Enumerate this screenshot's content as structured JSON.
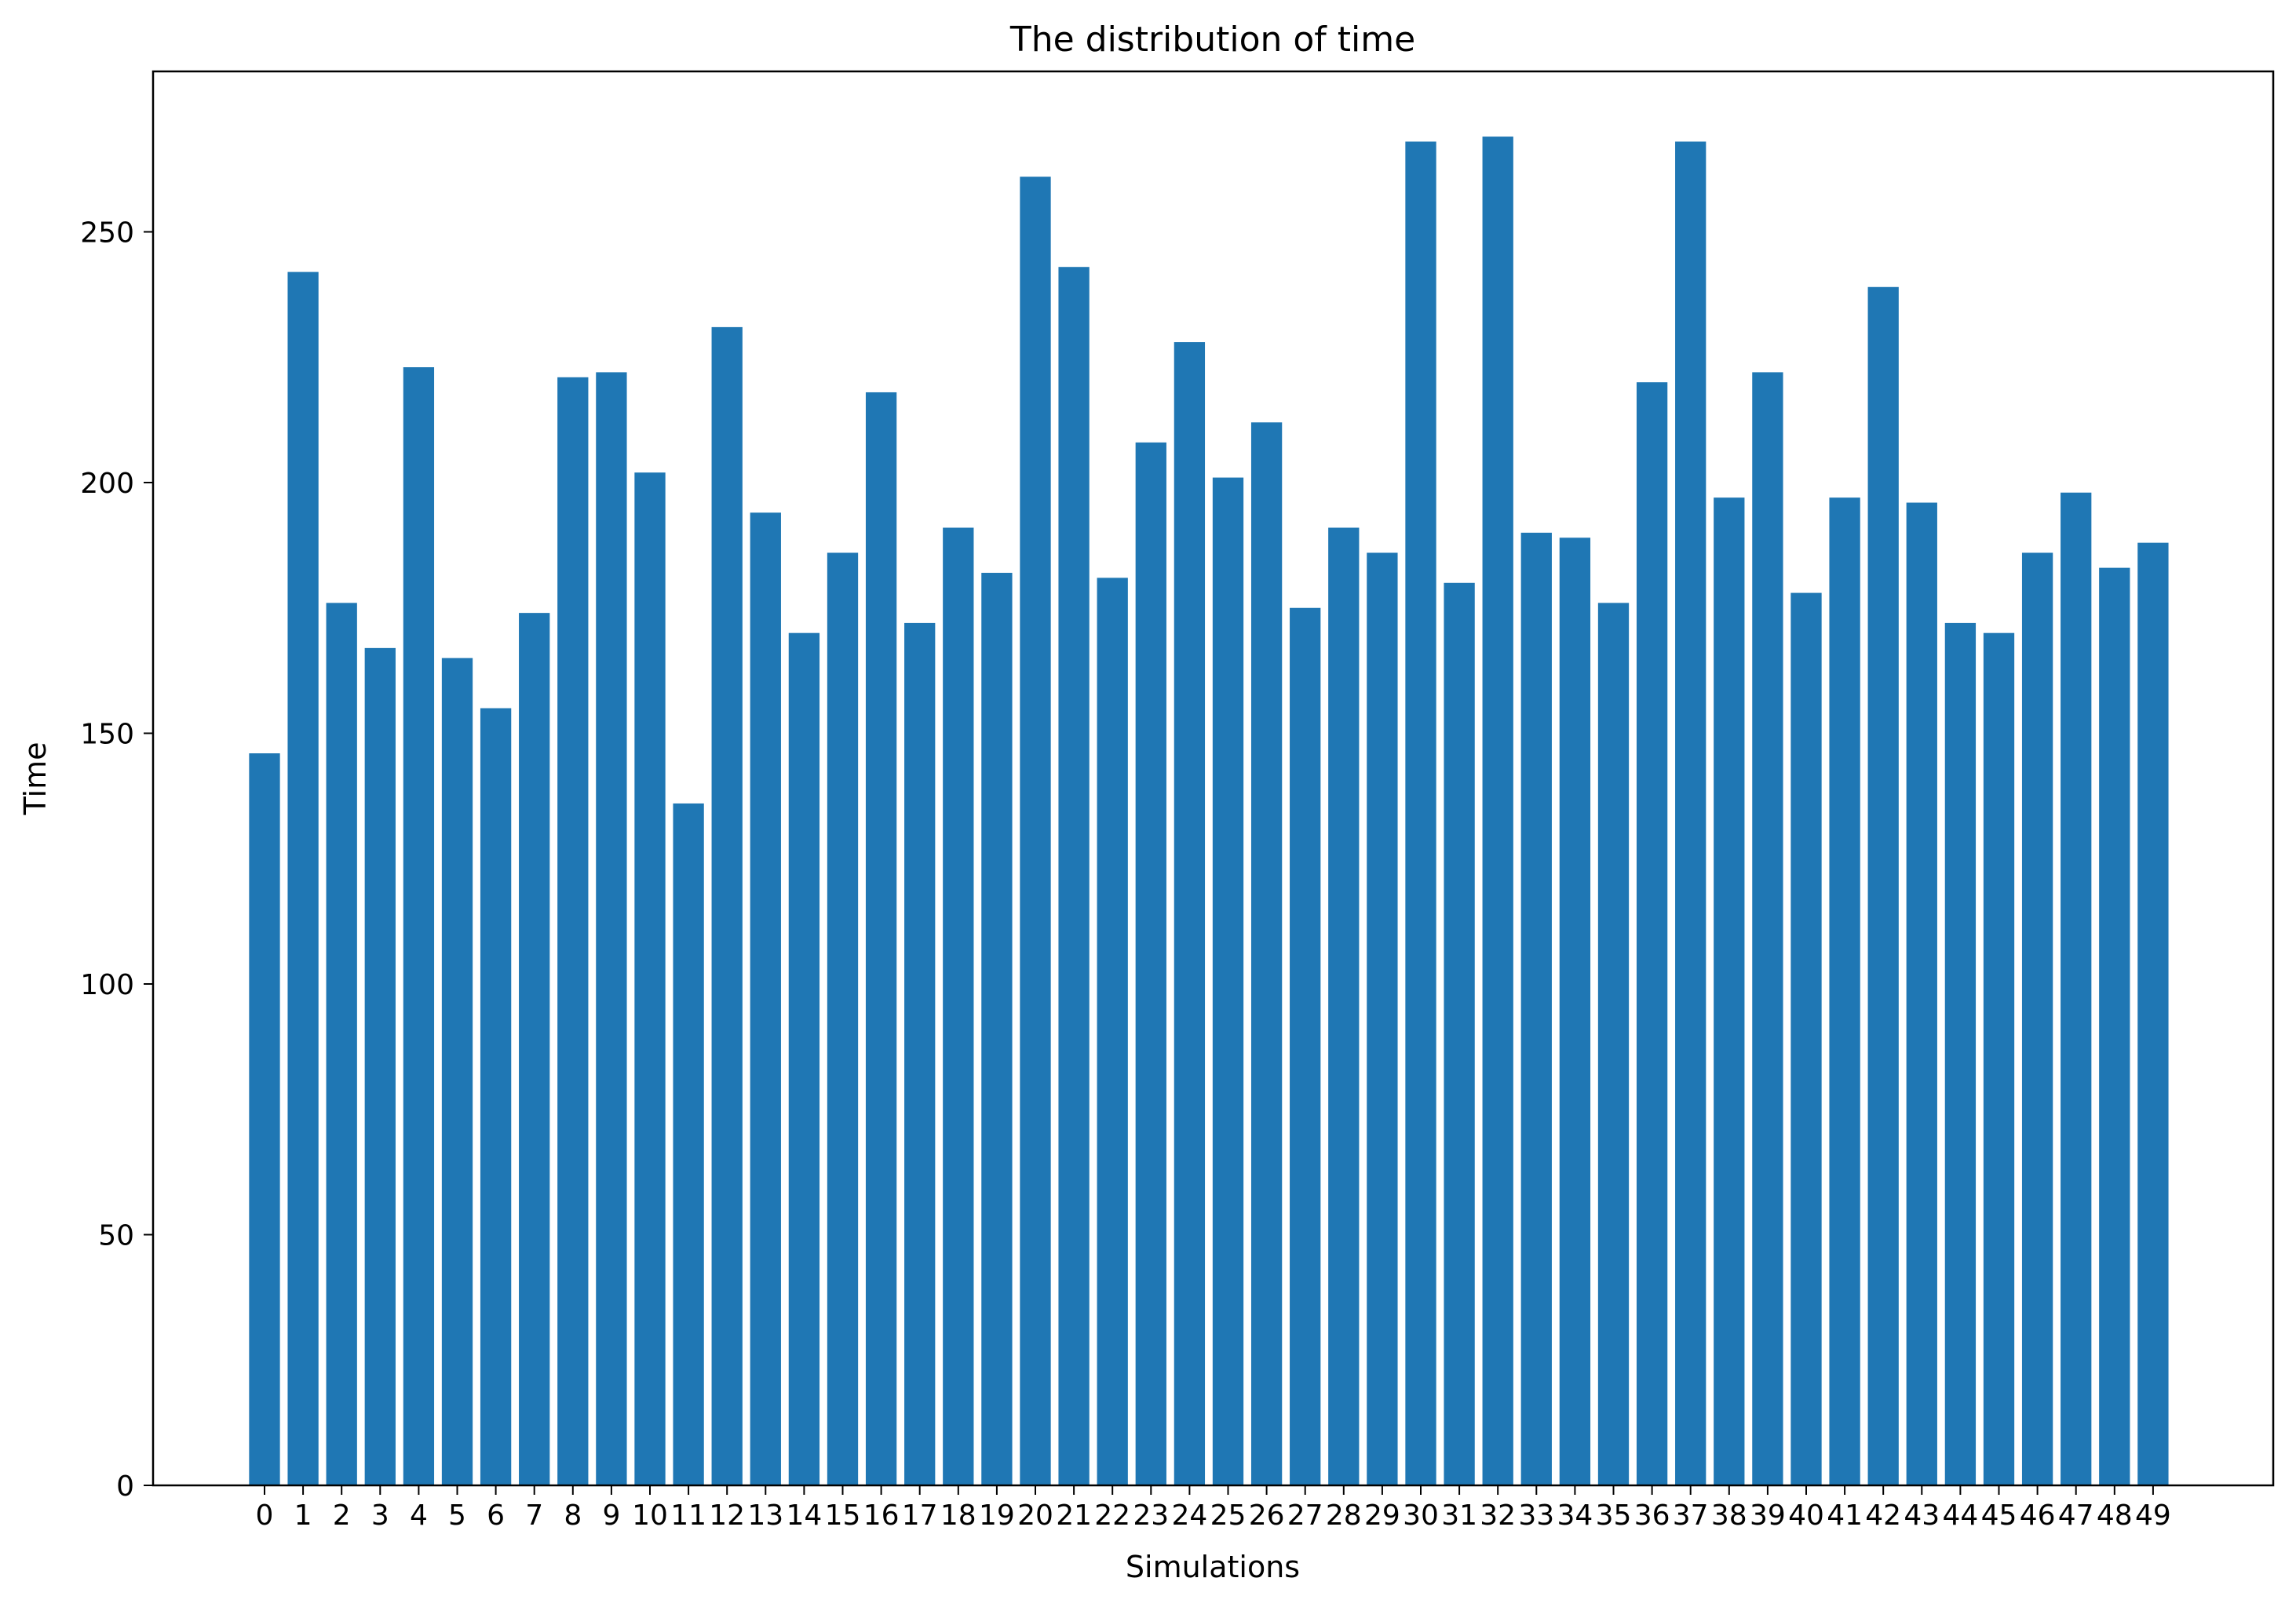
{
  "chart_data": {
    "type": "bar",
    "title": "The distribution of time",
    "xlabel": "Simulations",
    "ylabel": "Time",
    "categories": [
      "0",
      "1",
      "2",
      "3",
      "4",
      "5",
      "6",
      "7",
      "8",
      "9",
      "10",
      "11",
      "12",
      "13",
      "14",
      "15",
      "16",
      "17",
      "18",
      "19",
      "20",
      "21",
      "22",
      "23",
      "24",
      "25",
      "26",
      "27",
      "28",
      "29",
      "30",
      "31",
      "32",
      "33",
      "34",
      "35",
      "36",
      "37",
      "38",
      "39",
      "40",
      "41",
      "42",
      "43",
      "44",
      "45",
      "46",
      "47",
      "48",
      "49"
    ],
    "values": [
      146,
      242,
      176,
      167,
      223,
      165,
      155,
      174,
      221,
      222,
      202,
      136,
      231,
      194,
      170,
      186,
      218,
      172,
      191,
      182,
      261,
      243,
      181,
      208,
      228,
      201,
      212,
      175,
      191,
      186,
      268,
      180,
      269,
      190,
      189,
      176,
      220,
      268,
      197,
      222,
      178,
      197,
      239,
      196,
      172,
      170,
      186,
      198,
      183,
      188
    ],
    "ylim": [
      0,
      282
    ],
    "yticks": [
      0,
      50,
      100,
      150,
      200,
      250
    ],
    "grid": false,
    "bar_color": "#1f77b4"
  }
}
